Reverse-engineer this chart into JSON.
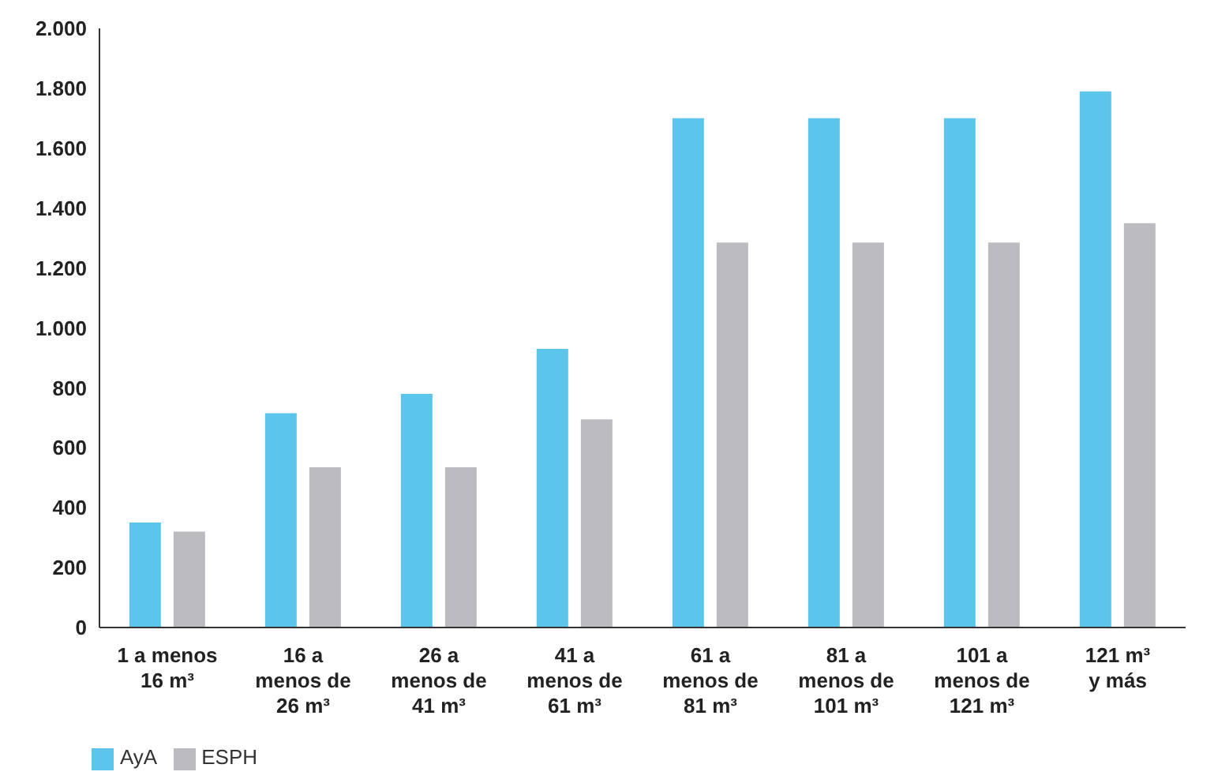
{
  "chart_data": {
    "type": "bar",
    "categories": [
      "1 a menos\n16 m³",
      "16 a\nmenos de\n26 m³",
      "26 a\nmenos de\n41 m³",
      "41 a\nmenos de\n61 m³",
      "61 a\nmenos de\n81 m³",
      "81 a\nmenos de\n101 m³",
      "101 a\nmenos de\n121 m³",
      "121 m³\ny más"
    ],
    "series": [
      {
        "name": "AyA",
        "color": "#5bc5eb",
        "values": [
          350,
          715,
          780,
          930,
          1700,
          1700,
          1700,
          1790
        ]
      },
      {
        "name": "ESPH",
        "color": "#bcbcc0",
        "values": [
          320,
          535,
          535,
          695,
          1285,
          1285,
          1285,
          1350
        ]
      }
    ],
    "ylim": [
      0,
      2000
    ],
    "yticks": [
      {
        "value": 0,
        "label": "0"
      },
      {
        "value": 200,
        "label": "200"
      },
      {
        "value": 400,
        "label": "400"
      },
      {
        "value": 600,
        "label": "600"
      },
      {
        "value": 800,
        "label": "800"
      },
      {
        "value": 1000,
        "label": "1.000"
      },
      {
        "value": 1200,
        "label": "1.200"
      },
      {
        "value": 1400,
        "label": "1.400"
      },
      {
        "value": 1600,
        "label": "1.600"
      },
      {
        "value": 1800,
        "label": "1.800"
      },
      {
        "value": 2000,
        "label": "2.000"
      }
    ],
    "grid": false,
    "legend": "bottom left"
  }
}
